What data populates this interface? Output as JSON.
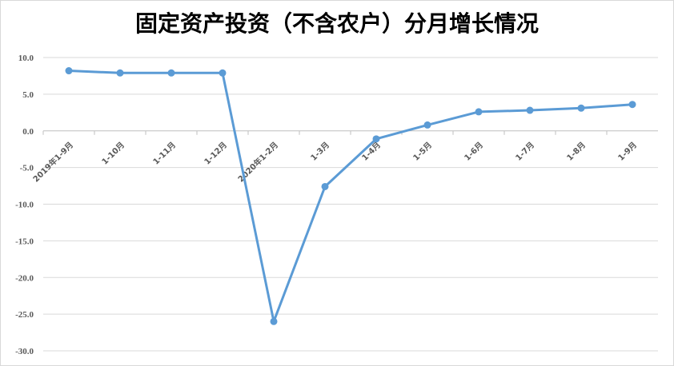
{
  "chart_data": {
    "type": "line",
    "title": "固定资产投资（不含农户）分月增长情况",
    "xlabel": "",
    "ylabel": "",
    "categories": [
      "2019年1-9月",
      "1-10月",
      "1-11月",
      "1-12月",
      "2020年1-2月",
      "1-3月",
      "1-4月",
      "1-5月",
      "1-6月",
      "1-7月",
      "1-8月",
      "1-9月"
    ],
    "ylim": [
      -30,
      10
    ],
    "yticks": [
      "10.0",
      "5.0",
      "0.0",
      "-5.0",
      "-10.0",
      "-15.0",
      "-20.0",
      "-25.0",
      "-30.0"
    ],
    "grid": true,
    "series": [
      {
        "values": [
          8.2,
          7.9,
          7.9,
          7.9,
          -26.0,
          -7.6,
          -1.1,
          0.8,
          2.6,
          2.8,
          3.1,
          3.6
        ]
      }
    ],
    "line_color": "#5b9bd5",
    "grid_color": "#d9d9d9",
    "axis_color": "#bfbfbf"
  }
}
